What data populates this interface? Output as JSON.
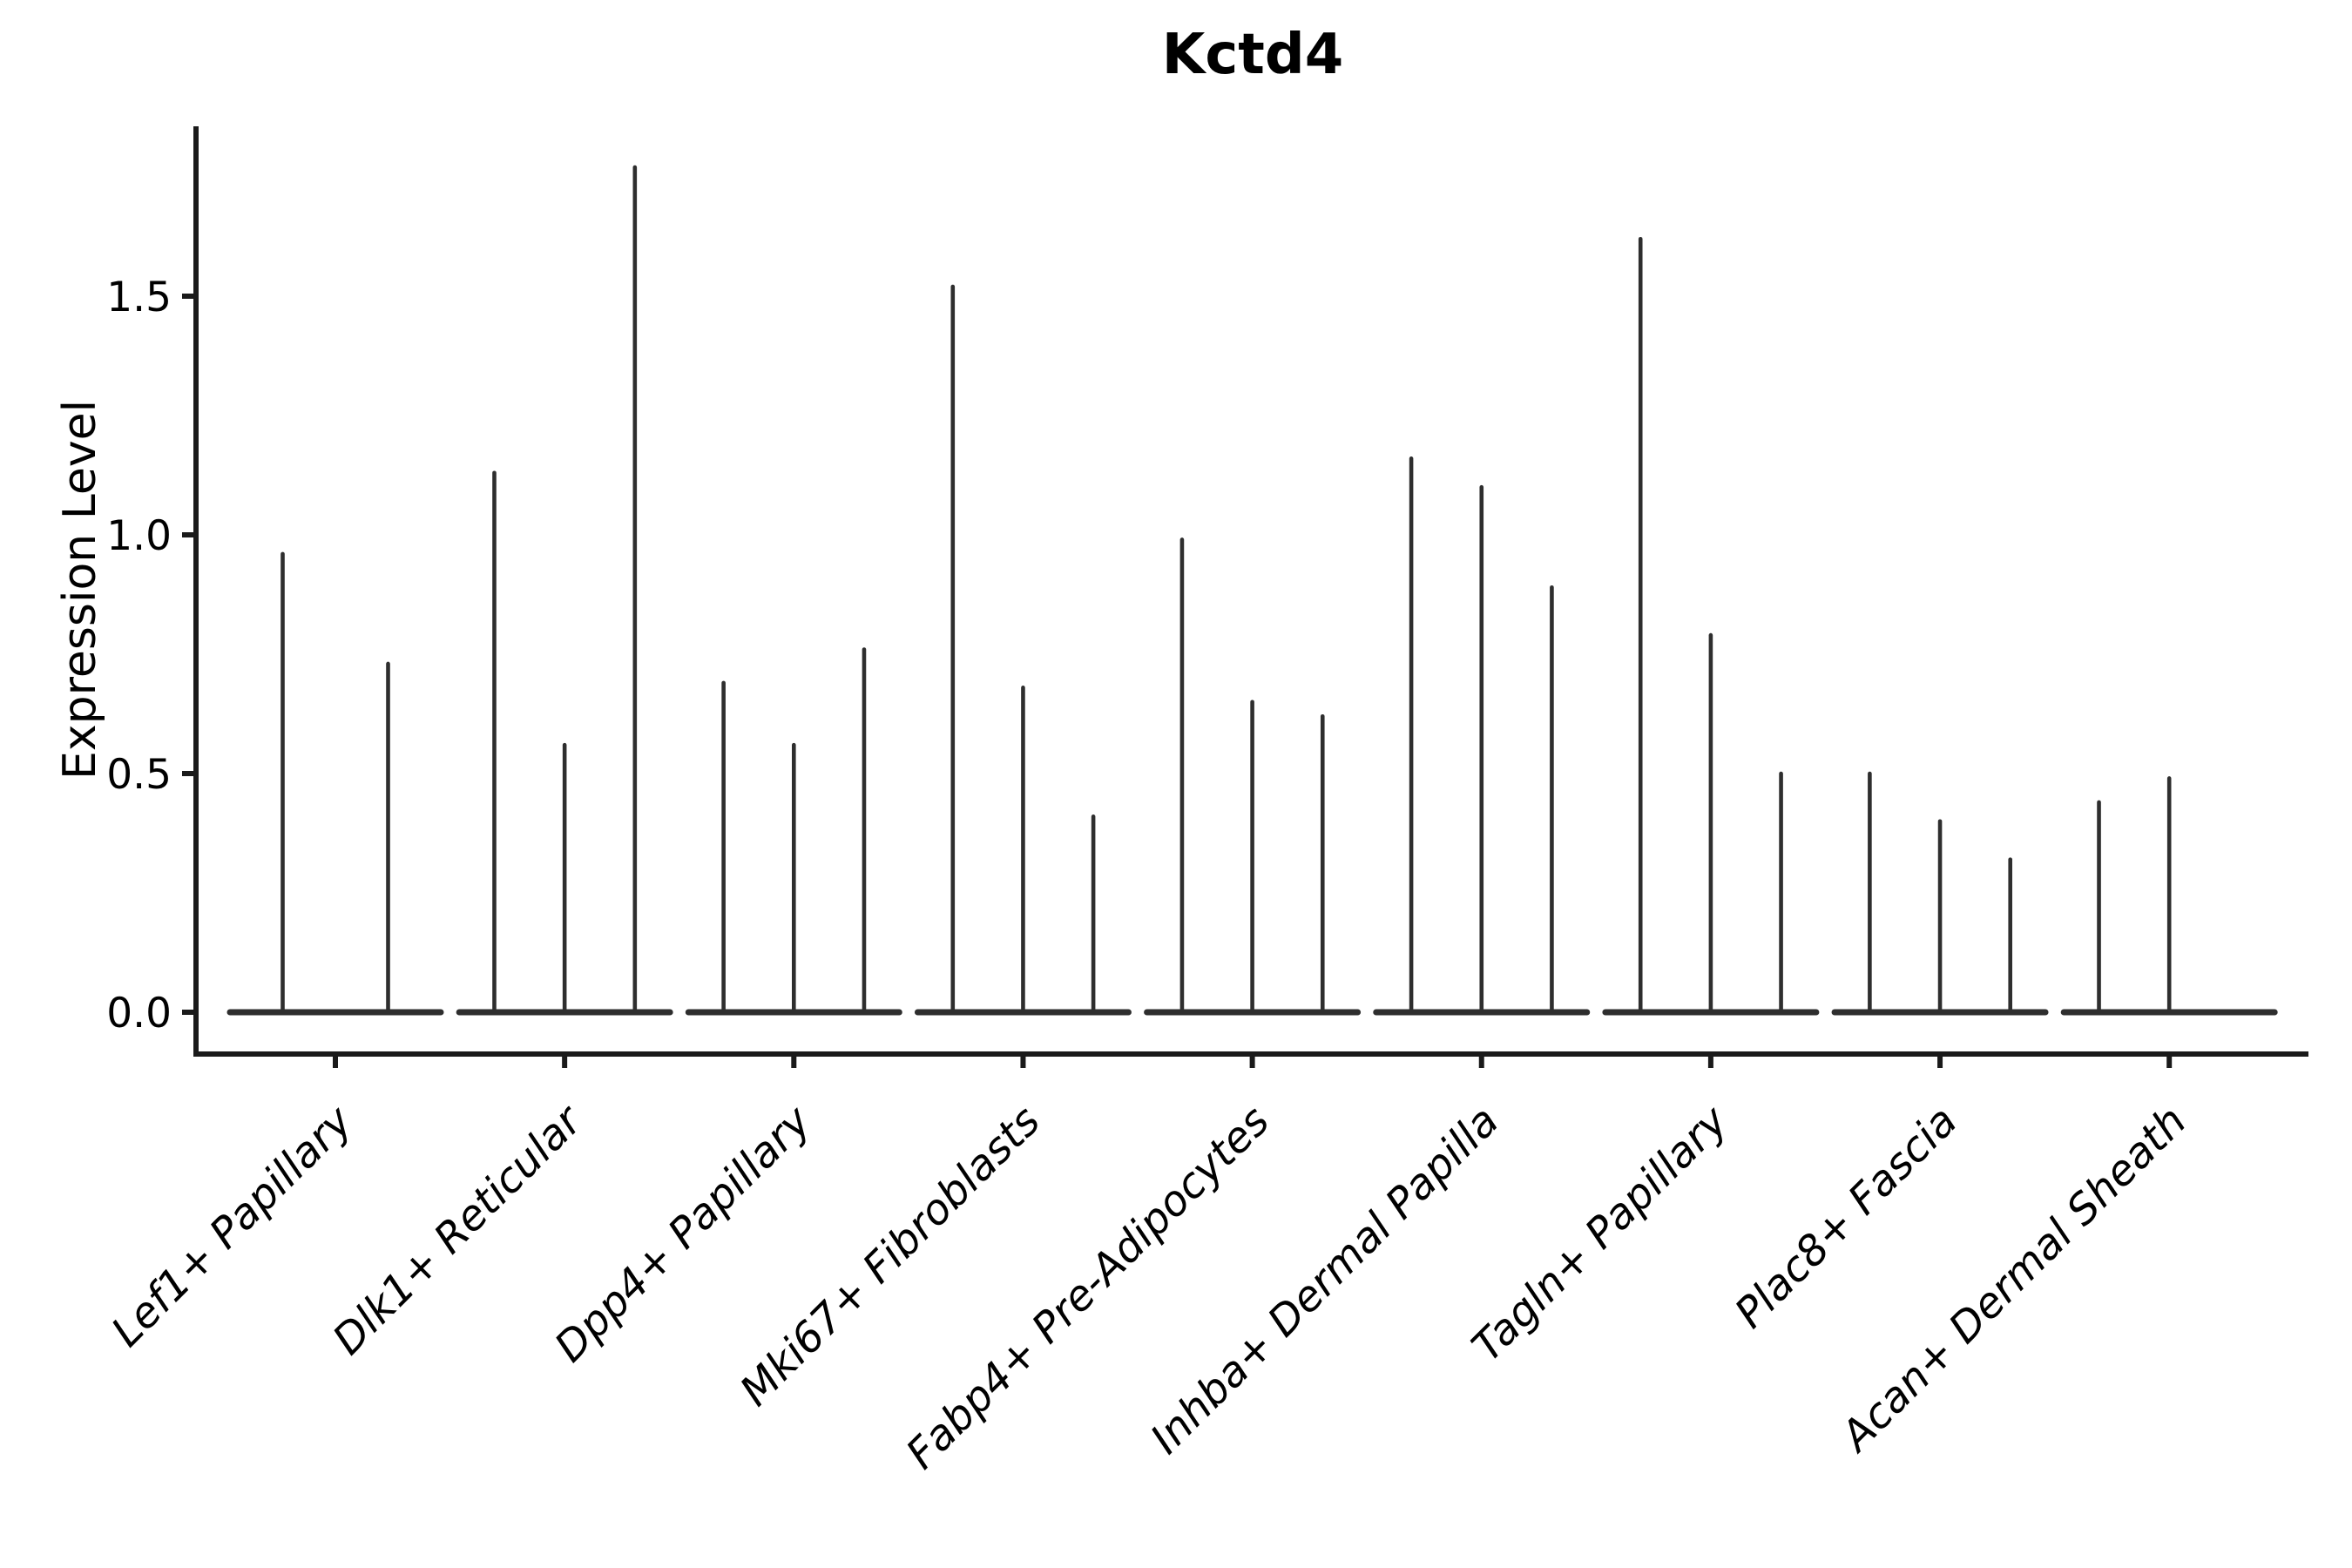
{
  "chart_data": {
    "type": "violin",
    "title": "Kctd4",
    "ylabel": "Expression Level",
    "xlabel": "",
    "grid": false,
    "legend": null,
    "ylim": [
      -0.09,
      1.86
    ],
    "yticks": [
      0.0,
      0.5,
      1.0,
      1.5
    ],
    "ytick_labels": [
      "0.0",
      "0.5",
      "1.0",
      "1.5"
    ],
    "categories": [
      "Lef1+ Papillary",
      "Dlk1+ Reticular",
      "Dpp4+ Papillary",
      "Mki67+ Fibroblasts",
      "Fabp4+ Pre-Adipocytes",
      "Inhba+ Dermal Papilla",
      "Tagln+ Papillary",
      "Plac8+ Fascia",
      "Acan+ Dermal Sheath"
    ],
    "groups": [
      {
        "label": "Lef1+ Papillary",
        "violin_max_values": [
          0.96,
          0.73
        ]
      },
      {
        "label": "Dlk1+ Reticular",
        "violin_max_values": [
          1.13,
          0.56,
          1.77
        ]
      },
      {
        "label": "Dpp4+ Papillary",
        "violin_max_values": [
          0.69,
          0.56,
          0.76
        ]
      },
      {
        "label": "Mki67+ Fibroblasts",
        "violin_max_values": [
          1.52,
          0.68,
          0.41
        ]
      },
      {
        "label": "Fabp4+ Pre-Adipocytes",
        "violin_max_values": [
          0.99,
          0.65,
          0.62
        ]
      },
      {
        "label": "Inhba+ Dermal Papilla",
        "violin_max_values": [
          1.16,
          1.1,
          0.89
        ]
      },
      {
        "label": "Tagln+ Papillary",
        "violin_max_values": [
          1.62,
          0.79,
          0.5
        ]
      },
      {
        "label": "Plac8+ Fascia",
        "violin_max_values": [
          0.5,
          0.4,
          0.32
        ]
      },
      {
        "label": "Acan+ Dermal Sheath",
        "violin_max_values": [
          0.44,
          0.49,
          0.0
        ]
      }
    ],
    "colors": {
      "violin_line": "#2e2e2e",
      "axis": "#1a1a1a",
      "text": "#000000",
      "background": "#ffffff"
    }
  }
}
